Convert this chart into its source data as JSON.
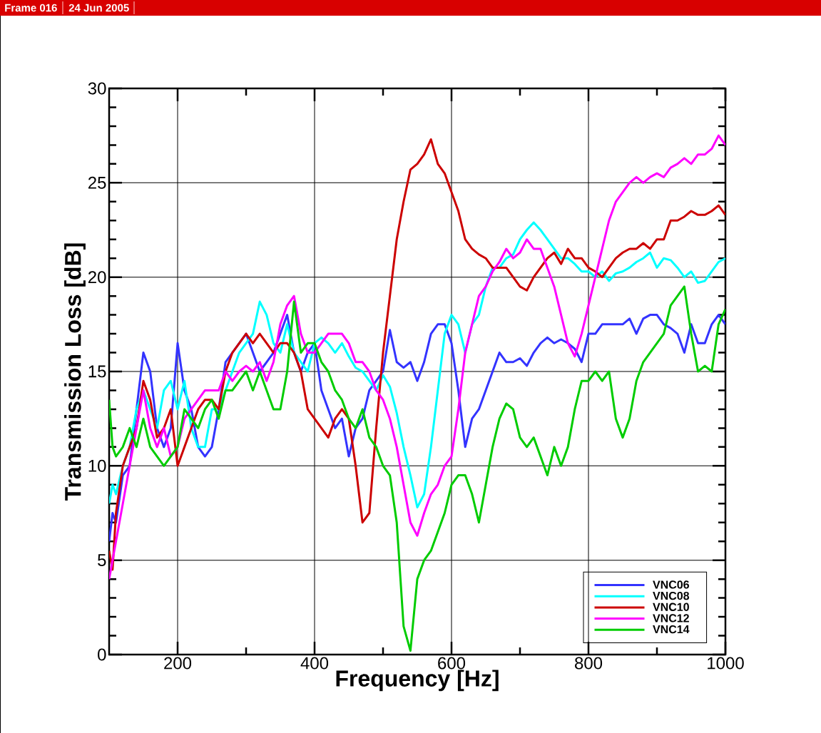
{
  "chart_data": {
    "type": "line",
    "xlabel": "Frequency [Hz]",
    "ylabel": "Transmission Loss [dB]",
    "annotations": [
      "Frame 016",
      "24 Jun 2005"
    ],
    "x": [
      100,
      105,
      110,
      120,
      130,
      140,
      150,
      160,
      170,
      180,
      190,
      200,
      210,
      220,
      230,
      240,
      250,
      260,
      270,
      280,
      290,
      300,
      310,
      320,
      330,
      340,
      350,
      360,
      370,
      380,
      390,
      400,
      410,
      420,
      430,
      440,
      450,
      460,
      470,
      480,
      490,
      500,
      510,
      520,
      530,
      540,
      550,
      560,
      570,
      580,
      590,
      600,
      610,
      620,
      630,
      640,
      650,
      660,
      670,
      680,
      690,
      700,
      710,
      720,
      730,
      740,
      750,
      760,
      770,
      780,
      790,
      800,
      810,
      820,
      830,
      840,
      850,
      860,
      870,
      880,
      890,
      900,
      910,
      920,
      930,
      940,
      950,
      960,
      970,
      980,
      990,
      1000
    ],
    "series": [
      {
        "name": "VNC06",
        "color": "#3333ff",
        "values": [
          6,
          7.5,
          7,
          9.5,
          10,
          13,
          16,
          15,
          12,
          11,
          12,
          16.5,
          14,
          13,
          11,
          10.5,
          11,
          13,
          15.5,
          16,
          16.5,
          17,
          16,
          15,
          15.5,
          16,
          17,
          18,
          16,
          15,
          16,
          16.5,
          14,
          13,
          12,
          12.5,
          10.5,
          12,
          12.5,
          14,
          14.5,
          15,
          17.2,
          15.5,
          15.2,
          15.5,
          14.5,
          15.5,
          17,
          17.5,
          17.5,
          16.5,
          14,
          11,
          12.5,
          13,
          14,
          15,
          16,
          15.5,
          15.5,
          15.7,
          15.3,
          16,
          16.5,
          16.8,
          16.5,
          16.7,
          16.5,
          16.2,
          15.5,
          17,
          17,
          17.5,
          17.5,
          17.5,
          17.5,
          17.8,
          17,
          17.8,
          18,
          18,
          17.5,
          17.3,
          17,
          16,
          17.5,
          16.5,
          16.5,
          17.5,
          18,
          17.5
        ]
      },
      {
        "name": "VNC08",
        "color": "#00ffff",
        "values": [
          8,
          9,
          8.5,
          10,
          11,
          13,
          14,
          13,
          12,
          14,
          14.5,
          13,
          14.5,
          12,
          11,
          11,
          13,
          13,
          14,
          15,
          16,
          16.5,
          17,
          18.7,
          18,
          16.5,
          16,
          17.5,
          16,
          15.5,
          15,
          16.5,
          16.8,
          16.5,
          16,
          16.5,
          15.8,
          15.2,
          15,
          14.5,
          14,
          14.8,
          14.2,
          12.8,
          11,
          9.5,
          7.8,
          8.5,
          11,
          14,
          17,
          18,
          17.5,
          16,
          17.5,
          18,
          19.5,
          20.5,
          20.5,
          21,
          21.2,
          22,
          22.5,
          22.9,
          22.5,
          22,
          21.5,
          21,
          21,
          20.7,
          20.3,
          20.3,
          20,
          20.3,
          19.8,
          20.2,
          20.3,
          20.5,
          20.8,
          21,
          21.3,
          20.5,
          21,
          20.9,
          20.5,
          20,
          20.3,
          19.7,
          19.8,
          20.3,
          20.8,
          21
        ]
      },
      {
        "name": "VNC10",
        "color": "#cc0000",
        "values": [
          5.5,
          4.5,
          7.5,
          10,
          11,
          12,
          14.5,
          13.5,
          11.5,
          12,
          13,
          10,
          11,
          12,
          13,
          13.5,
          13.5,
          13,
          15,
          16,
          16.5,
          17,
          16.5,
          17,
          16.5,
          16,
          16.5,
          16.5,
          16,
          15,
          13,
          12.5,
          12,
          11.5,
          12.5,
          13,
          12.5,
          10,
          7,
          7.5,
          12,
          16,
          19,
          22,
          24,
          25.7,
          26,
          26.5,
          27.3,
          26,
          25.5,
          24.5,
          23.5,
          22,
          21.5,
          21.2,
          21,
          20.5,
          20.5,
          20.5,
          20,
          19.5,
          19.3,
          20,
          20.5,
          21,
          21.3,
          20.7,
          21.5,
          21,
          21,
          20.5,
          20.3,
          20,
          20.5,
          21,
          21.3,
          21.5,
          21.5,
          21.8,
          21.5,
          22,
          22,
          23,
          23,
          23.2,
          23.5,
          23.3,
          23.3,
          23.5,
          23.8,
          23.3
        ]
      },
      {
        "name": "VNC12",
        "color": "#ff00ff",
        "values": [
          4,
          5,
          6,
          8,
          10,
          12,
          14,
          12,
          11,
          12,
          10.5,
          11,
          12.5,
          13,
          13.5,
          14,
          14,
          14,
          15,
          14.5,
          15,
          15.3,
          15,
          15.5,
          14.5,
          15.5,
          17.5,
          18.5,
          19,
          17,
          16,
          16,
          16.5,
          17,
          17,
          17,
          16.5,
          15.5,
          15.5,
          15,
          14,
          13.5,
          12.5,
          11,
          9,
          7,
          6.3,
          7.5,
          8.5,
          9,
          10,
          10.5,
          13,
          16,
          17.5,
          19,
          19.5,
          20.3,
          20.8,
          21.5,
          21,
          21.3,
          22,
          21.5,
          21.5,
          20.5,
          19.5,
          18,
          16.5,
          15.8,
          17,
          18.5,
          20,
          21.5,
          23,
          24,
          24.5,
          25,
          25.3,
          25,
          25.3,
          25.5,
          25.3,
          25.8,
          26,
          26.3,
          26,
          26.5,
          26.5,
          26.8,
          27.5,
          27
        ]
      },
      {
        "name": "VNC14",
        "color": "#00cc00",
        "values": [
          13.5,
          11,
          10.5,
          11,
          12,
          11,
          12.5,
          11,
          10.5,
          10,
          10.5,
          11,
          13,
          12.5,
          12,
          13,
          13.5,
          12.5,
          14,
          14,
          14.5,
          15,
          14,
          15,
          14,
          13,
          13,
          15,
          18.7,
          16,
          16.5,
          16.5,
          15.5,
          15,
          14,
          13.5,
          12.5,
          12,
          13,
          11.5,
          11,
          10,
          9.5,
          7,
          1.5,
          0.2,
          4,
          5,
          5.5,
          6.5,
          7.5,
          9,
          9.5,
          9.5,
          8.5,
          7,
          9,
          11,
          12.5,
          13.3,
          13,
          11.5,
          11,
          11.5,
          10.5,
          9.5,
          11,
          10,
          11,
          13,
          14.5,
          14.5,
          15,
          14.5,
          15,
          12.5,
          11.5,
          12.5,
          14.5,
          15.5,
          16,
          16.5,
          17,
          18.5,
          19,
          19.5,
          17,
          15,
          15.3,
          15,
          17.5,
          18.3
        ]
      }
    ],
    "xlim": [
      100,
      1000
    ],
    "xticks": [
      200,
      400,
      600,
      800,
      1000
    ],
    "ylim": [
      0,
      30
    ],
    "yticks": [
      0,
      5,
      10,
      15,
      20,
      25,
      30
    ],
    "grid": true,
    "legend": "bottom right",
    "marker": "none",
    "line_style": "solid"
  }
}
